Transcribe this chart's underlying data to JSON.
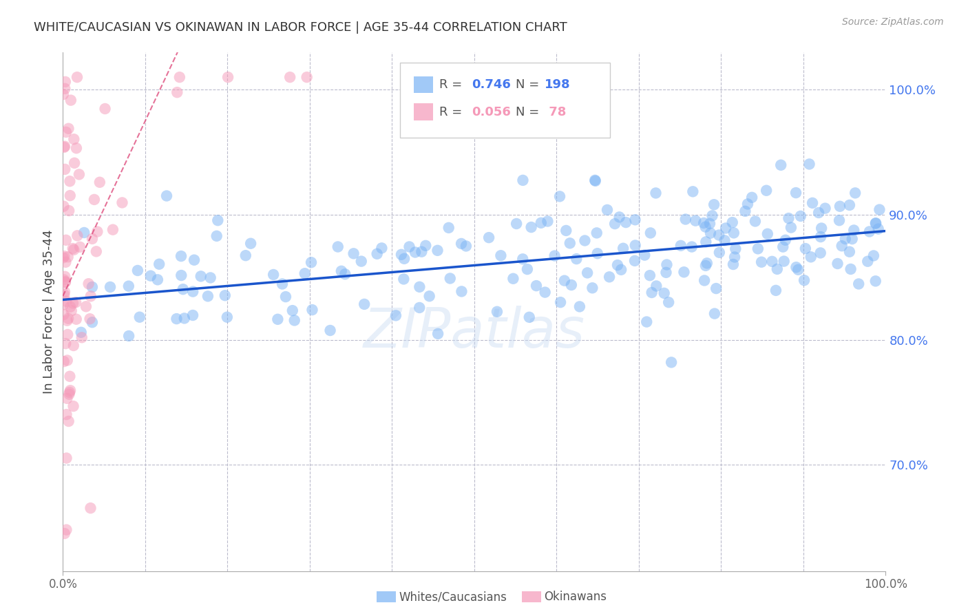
{
  "title": "WHITE/CAUCASIAN VS OKINAWAN IN LABOR FORCE | AGE 35-44 CORRELATION CHART",
  "source": "Source: ZipAtlas.com",
  "ylabel": "In Labor Force | Age 35-44",
  "x_min": 0.0,
  "x_max": 1.0,
  "y_min": 0.615,
  "y_max": 1.03,
  "y_ticks_right": [
    0.7,
    0.8,
    0.9,
    1.0
  ],
  "y_tick_labels_right": [
    "70.0%",
    "80.0%",
    "90.0%",
    "100.0%"
  ],
  "blue_color": "#7ab3f5",
  "blue_line_color": "#1a55cc",
  "pink_color": "#f599b8",
  "pink_line_color": "#dd4477",
  "blue_R": 0.746,
  "blue_N": 198,
  "pink_R": 0.056,
  "pink_N": 78,
  "blue_slope": 0.055,
  "blue_intercept": 0.832,
  "pink_slope": 1.4,
  "pink_intercept": 0.845,
  "watermark": "ZIPatlas",
  "background_color": "#ffffff",
  "grid_color": "#bbbbcc",
  "title_color": "#333333",
  "axis_label_color": "#444444",
  "right_axis_color": "#4477ee",
  "legend_label_blue": "Whites/Caucasians",
  "legend_label_pink": "Okinawans",
  "legend_box_color": "#dddddd",
  "right_axis_tick_color": "#4477ee"
}
